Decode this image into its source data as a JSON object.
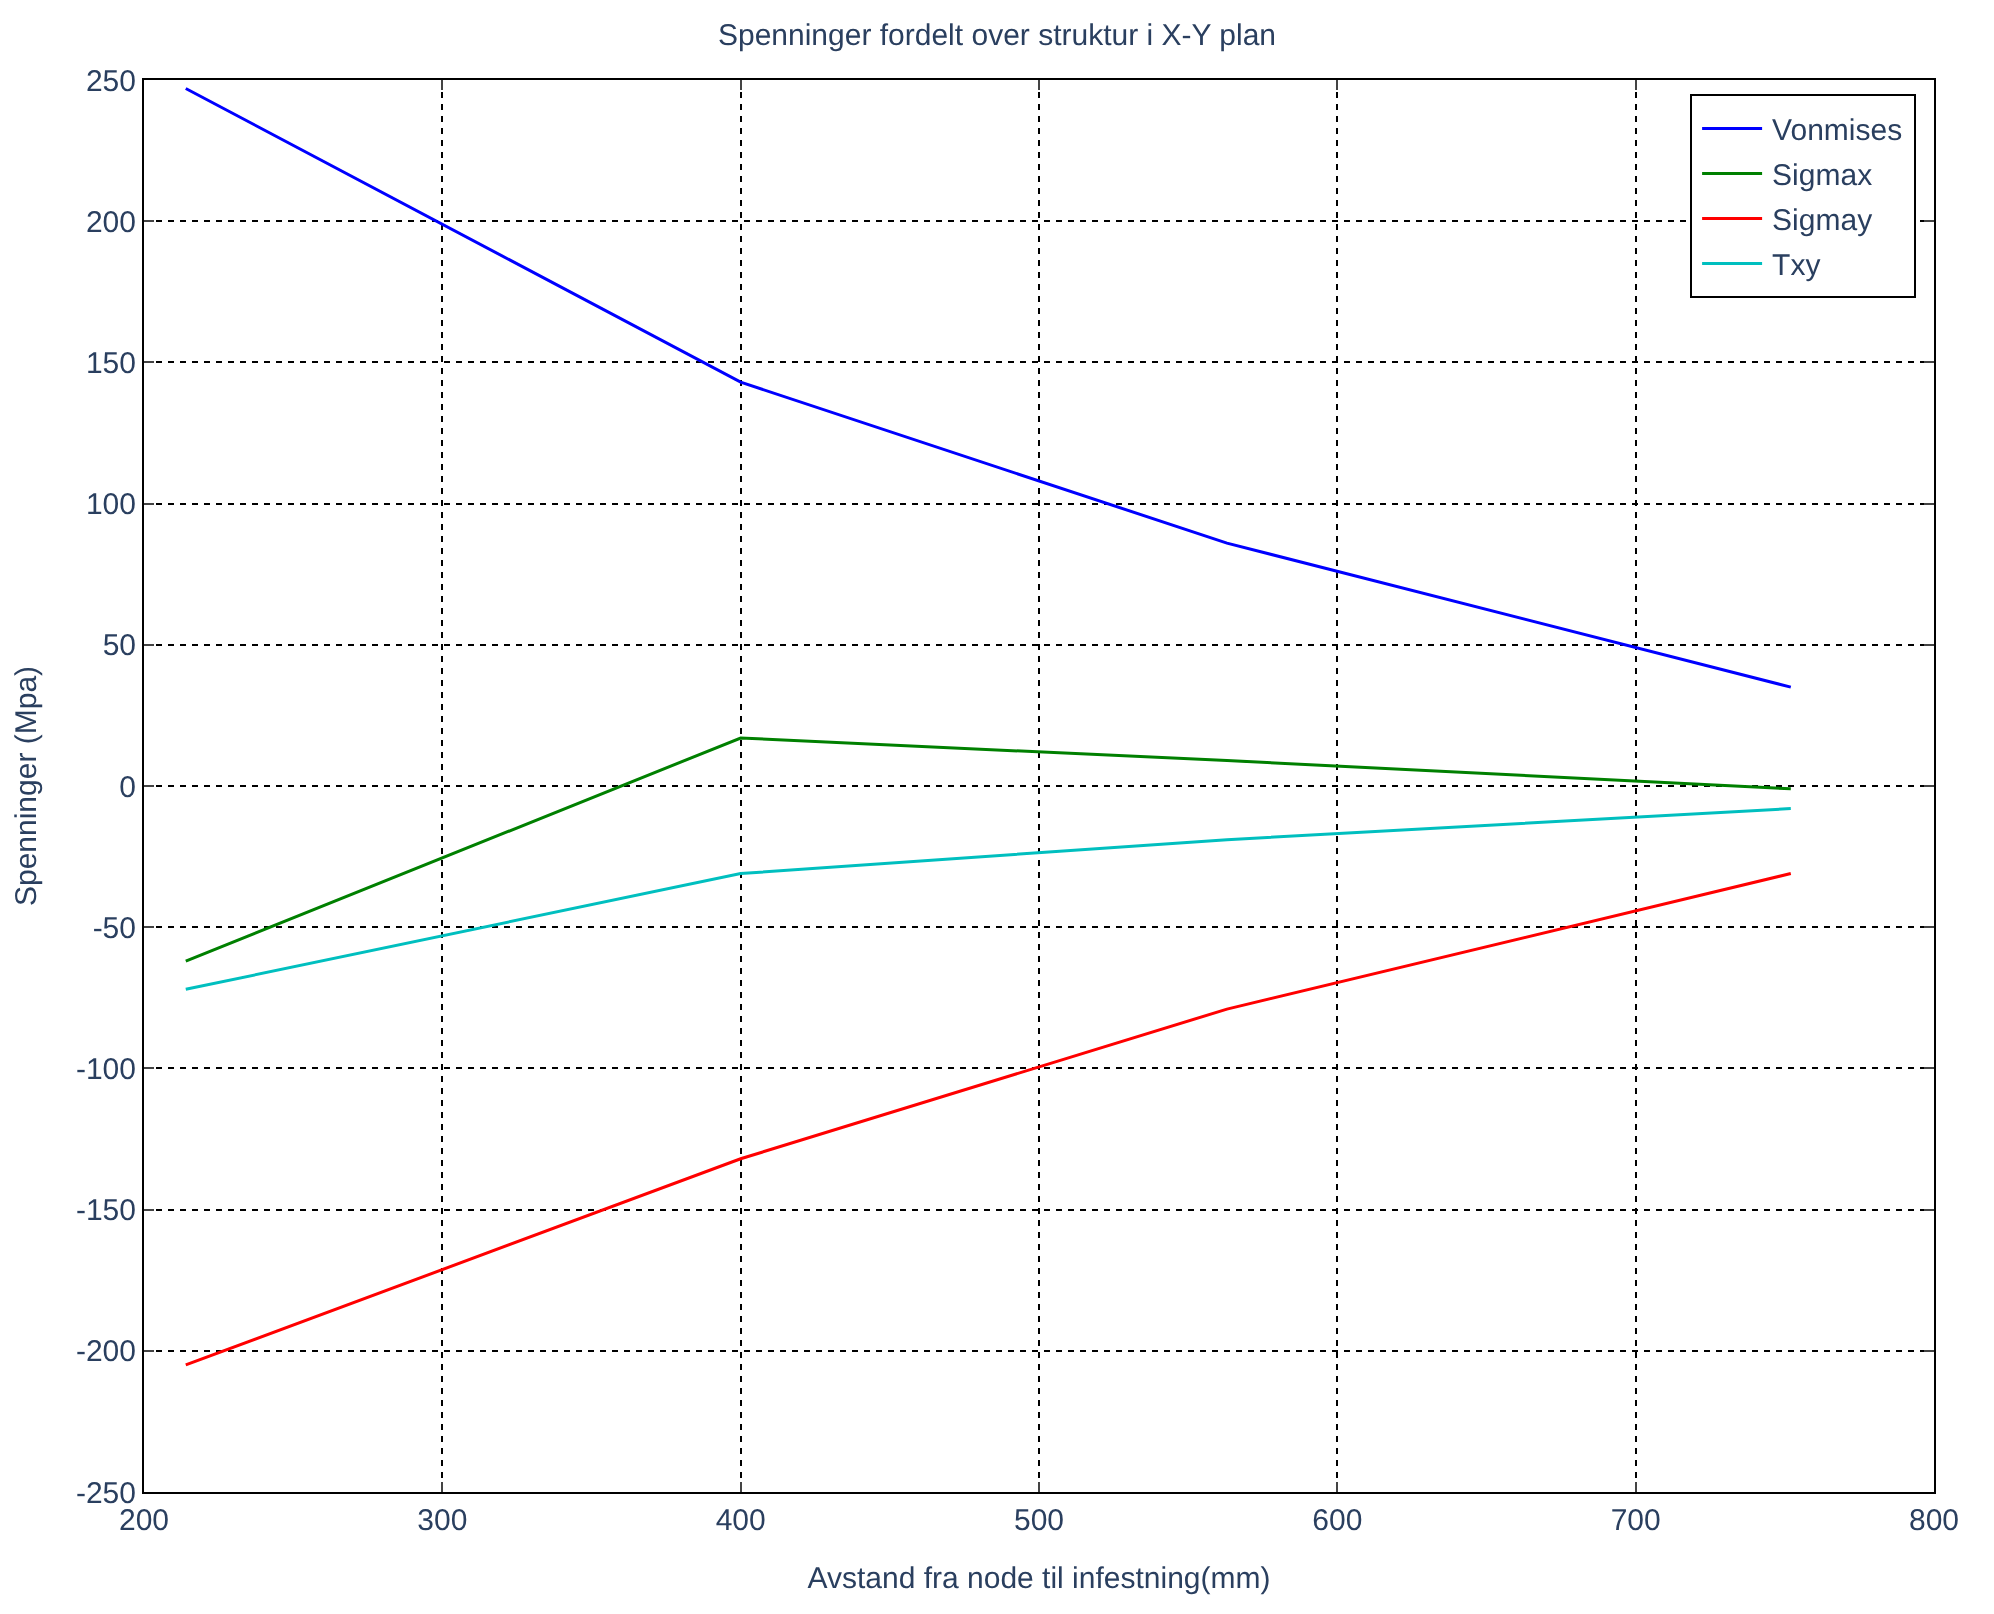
{
  "chart_data": {
    "type": "line",
    "title": "Spenninger fordelt over struktur i X-Y plan",
    "xlabel": "Avstand fra node til infestning(mm)",
    "ylabel": "Spenninger (Mpa)",
    "x": [
      214,
      400,
      563,
      752
    ],
    "series": [
      {
        "name": "Vonmises",
        "color": "#0000ff",
        "values": [
          247,
          143,
          86,
          35
        ]
      },
      {
        "name": "Sigmax",
        "color": "#008000",
        "values": [
          -62,
          17,
          9,
          -1
        ]
      },
      {
        "name": "Sigmay",
        "color": "#ff0000",
        "values": [
          -205,
          -132,
          -79,
          -31
        ]
      },
      {
        "name": "Txy",
        "color": "#00bfbf",
        "values": [
          -72,
          -31,
          -19,
          -8
        ]
      }
    ],
    "xlim": [
      200,
      800
    ],
    "xticks": [
      200,
      300,
      400,
      500,
      600,
      700,
      800
    ],
    "ylim": [
      -250,
      250
    ],
    "yticks": [
      -250,
      -200,
      -150,
      -100,
      -50,
      0,
      50,
      100,
      150,
      200,
      250
    ],
    "grid": true,
    "legend": "top right",
    "marker": "none",
    "line_style": "solid"
  }
}
